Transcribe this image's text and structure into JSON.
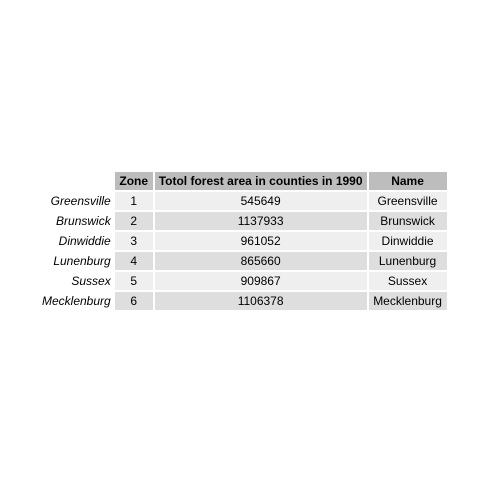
{
  "table": {
    "headers": {
      "zone": "Zone",
      "area": "Totol forest area in counties in 1990",
      "name": "Name"
    },
    "rows": [
      {
        "rowname": "Greensville",
        "zone": "1",
        "area": "545649",
        "name": "Greensville"
      },
      {
        "rowname": "Brunswick",
        "zone": "2",
        "area": "1137933",
        "name": "Brunswick"
      },
      {
        "rowname": "Dinwiddie",
        "zone": "3",
        "area": "961052",
        "name": "Dinwiddie"
      },
      {
        "rowname": "Lunenburg",
        "zone": "4",
        "area": "865660",
        "name": "Lunenburg"
      },
      {
        "rowname": "Sussex",
        "zone": "5",
        "area": "909867",
        "name": "Sussex"
      },
      {
        "rowname": "Mecklenburg",
        "zone": "6",
        "area": "1106378",
        "name": "Mecklenburg"
      }
    ]
  }
}
